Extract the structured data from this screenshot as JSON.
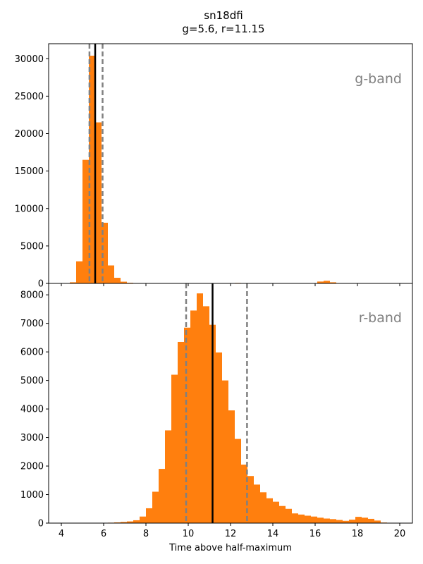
{
  "figure": {
    "title_line1": "sn18dfi",
    "title_line2": "g=5.6, r=11.15",
    "xlabel": "Time above half-maximum"
  },
  "colors": {
    "bar": "#ff7f0e",
    "median_line": "#000000",
    "interval_line": "#808080",
    "band_label": "#808080"
  },
  "chart_data": [
    {
      "type": "bar",
      "panel": "top",
      "band_label": "g-band",
      "xlim": [
        3.4,
        20.6
      ],
      "ylim": [
        0,
        32000
      ],
      "x_ticks": [
        4,
        6,
        8,
        10,
        12,
        14,
        16,
        18,
        20
      ],
      "y_ticks": [
        0,
        5000,
        10000,
        15000,
        20000,
        25000,
        30000
      ],
      "bin_width": 0.3,
      "bins": [
        {
          "x": 4.55,
          "y": 150
        },
        {
          "x": 4.85,
          "y": 2950
        },
        {
          "x": 5.15,
          "y": 16500
        },
        {
          "x": 5.45,
          "y": 30400
        },
        {
          "x": 5.75,
          "y": 21500
        },
        {
          "x": 6.05,
          "y": 8100
        },
        {
          "x": 6.35,
          "y": 2400
        },
        {
          "x": 6.65,
          "y": 750
        },
        {
          "x": 6.95,
          "y": 230
        },
        {
          "x": 7.25,
          "y": 80
        },
        {
          "x": 7.55,
          "y": 30
        },
        {
          "x": 12.35,
          "y": 60
        },
        {
          "x": 16.25,
          "y": 250
        },
        {
          "x": 16.55,
          "y": 350
        },
        {
          "x": 16.85,
          "y": 150
        }
      ],
      "median": 5.6,
      "interval": [
        5.33,
        5.95
      ]
    },
    {
      "type": "bar",
      "panel": "bottom",
      "band_label": "r-band",
      "xlim": [
        3.4,
        20.6
      ],
      "ylim": [
        0,
        8400
      ],
      "x_ticks": [
        4,
        6,
        8,
        10,
        12,
        14,
        16,
        18,
        20
      ],
      "y_ticks": [
        0,
        1000,
        2000,
        3000,
        4000,
        5000,
        6000,
        7000,
        8000
      ],
      "bin_width": 0.3,
      "bins": [
        {
          "x": 6.05,
          "y": 10
        },
        {
          "x": 6.35,
          "y": 15
        },
        {
          "x": 6.65,
          "y": 25
        },
        {
          "x": 6.95,
          "y": 40
        },
        {
          "x": 7.25,
          "y": 60
        },
        {
          "x": 7.55,
          "y": 100
        },
        {
          "x": 7.85,
          "y": 230
        },
        {
          "x": 8.15,
          "y": 520
        },
        {
          "x": 8.45,
          "y": 1100
        },
        {
          "x": 8.75,
          "y": 1900
        },
        {
          "x": 9.05,
          "y": 3250
        },
        {
          "x": 9.35,
          "y": 5200
        },
        {
          "x": 9.65,
          "y": 6350
        },
        {
          "x": 9.95,
          "y": 6850
        },
        {
          "x": 10.25,
          "y": 7450
        },
        {
          "x": 10.55,
          "y": 8050
        },
        {
          "x": 10.85,
          "y": 7600
        },
        {
          "x": 11.15,
          "y": 6950
        },
        {
          "x": 11.45,
          "y": 5980
        },
        {
          "x": 11.75,
          "y": 5000
        },
        {
          "x": 12.05,
          "y": 3950
        },
        {
          "x": 12.35,
          "y": 2950
        },
        {
          "x": 12.65,
          "y": 2050
        },
        {
          "x": 12.95,
          "y": 1650
        },
        {
          "x": 13.25,
          "y": 1350
        },
        {
          "x": 13.55,
          "y": 1080
        },
        {
          "x": 13.85,
          "y": 870
        },
        {
          "x": 14.15,
          "y": 750
        },
        {
          "x": 14.45,
          "y": 600
        },
        {
          "x": 14.75,
          "y": 500
        },
        {
          "x": 15.05,
          "y": 340
        },
        {
          "x": 15.35,
          "y": 300
        },
        {
          "x": 15.65,
          "y": 260
        },
        {
          "x": 15.95,
          "y": 230
        },
        {
          "x": 16.25,
          "y": 190
        },
        {
          "x": 16.55,
          "y": 160
        },
        {
          "x": 16.85,
          "y": 140
        },
        {
          "x": 17.15,
          "y": 110
        },
        {
          "x": 17.45,
          "y": 80
        },
        {
          "x": 17.75,
          "y": 120
        },
        {
          "x": 18.05,
          "y": 220
        },
        {
          "x": 18.35,
          "y": 190
        },
        {
          "x": 18.65,
          "y": 150
        },
        {
          "x": 18.95,
          "y": 90
        },
        {
          "x": 19.25,
          "y": 20
        },
        {
          "x": 19.55,
          "y": 5
        }
      ],
      "median": 11.15,
      "interval": [
        9.9,
        12.78
      ]
    }
  ]
}
